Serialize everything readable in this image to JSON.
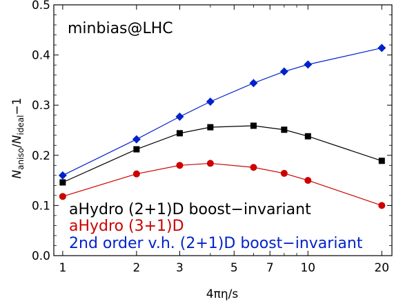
{
  "chart_data": {
    "type": "line",
    "xlabel": "4πη/s",
    "ylabel": "N_aniso/N_ideal−1",
    "ylabel_parts": {
      "N1": "N",
      "sub1": "aniso",
      "slash": "/",
      "N2": "N",
      "sub2": "ideal",
      "rest": "−1"
    },
    "xscale": "log",
    "xlim": [
      0.92,
      22
    ],
    "ylim": [
      0.0,
      0.5
    ],
    "xticks": [
      1,
      2,
      3,
      5,
      7,
      10,
      20
    ],
    "xtick_labels": [
      "1",
      "2",
      "3",
      "5",
      "7",
      "10",
      "20"
    ],
    "yticks": [
      0.0,
      0.1,
      0.2,
      0.3,
      0.4,
      0.5
    ],
    "ytick_labels": [
      "0.0",
      "0.1",
      "0.2",
      "0.3",
      "0.4",
      "0.5"
    ],
    "annotation": "minbias@LHC",
    "legend_placement": "bottom-left",
    "series": [
      {
        "name": "aHydro (2+1)D boost−invariant",
        "color": "#000000",
        "marker": "square",
        "x": [
          1,
          2,
          3,
          4,
          6,
          8,
          10,
          20
        ],
        "y": [
          0.146,
          0.212,
          0.244,
          0.256,
          0.259,
          0.251,
          0.238,
          0.189
        ]
      },
      {
        "name": "aHydro (3+1)D",
        "color": "#cc0000",
        "marker": "circle",
        "x": [
          1,
          2,
          3,
          4,
          6,
          8,
          10,
          20
        ],
        "y": [
          0.118,
          0.163,
          0.18,
          0.184,
          0.176,
          0.164,
          0.15,
          0.1
        ]
      },
      {
        "name": "2nd order v.h. (2+1)D boost−invariant",
        "color": "#0022cc",
        "marker": "diamond",
        "x": [
          1,
          2,
          3,
          4,
          6,
          8,
          10,
          20
        ],
        "y": [
          0.16,
          0.232,
          0.277,
          0.307,
          0.344,
          0.367,
          0.381,
          0.414
        ]
      }
    ]
  }
}
